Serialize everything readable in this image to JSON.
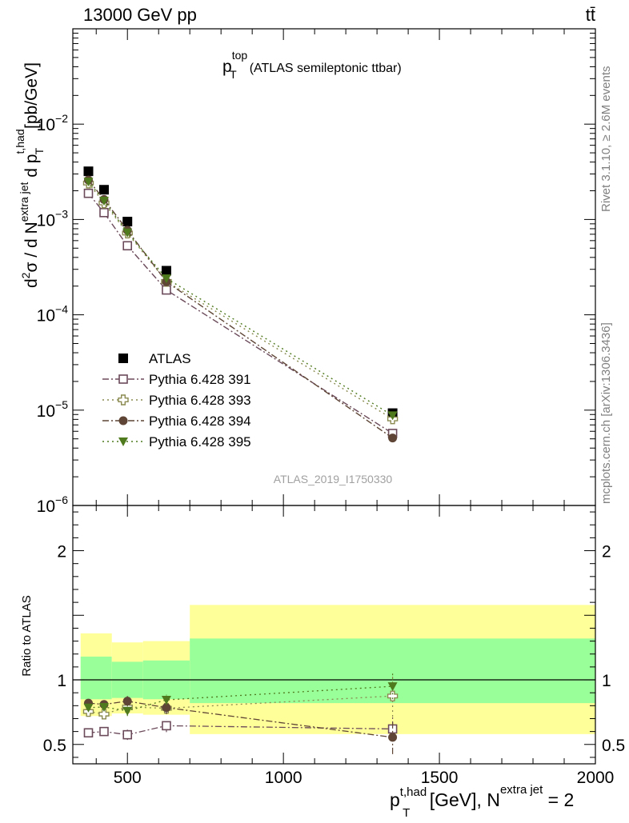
{
  "header": {
    "energy_label": "13000 GeV pp",
    "process_label": "tt̄"
  },
  "side_labels": {
    "rivet": "Rivet 3.1.10, ≥ 2.6M events",
    "mcplots": "mcplots.cern.ch [arXiv:1306.3436]"
  },
  "chart_data": [
    {
      "type": "scatter",
      "panel": "main",
      "title_main": "p",
      "title_sup": "top",
      "title_sub": "T",
      "title_rest": "(ATLAS semileptonic ttbar)",
      "ylabel": "d²σ / d N^{extra jet} d p_T^{t,had} [pb/GeV]",
      "ylabel_parts": {
        "d": "d",
        "two": "2",
        "sigma": "σ / d N",
        "extra": "extra jet",
        "dp": " d p",
        "thad": "t,had",
        "T": "T",
        "units": " [pb/GeV]"
      },
      "yscale": "log",
      "ylim": [
        1e-06,
        0.1
      ],
      "ytick_labels": [
        {
          "value": 0.01,
          "base": "10",
          "exp": "−2"
        },
        {
          "value": 0.001,
          "base": "10",
          "exp": "−3"
        },
        {
          "value": 0.0001,
          "base": "10",
          "exp": "−4"
        },
        {
          "value": 1e-05,
          "base": "10",
          "exp": "−5"
        },
        {
          "value": 1e-06,
          "base": "10",
          "exp": "−6"
        }
      ],
      "xlim": [
        325,
        2000
      ],
      "analysis_label": "ATLAS_2019_I1750330",
      "series": [
        {
          "name": "ATLAS",
          "marker": "square-filled",
          "color": "#000000",
          "line": "none",
          "x": [
            375,
            425,
            500,
            625,
            1350
          ],
          "y": [
            0.0032,
            0.00205,
            0.00095,
            0.00029,
            9.3e-06
          ]
        },
        {
          "name": "Pythia 6.428 391",
          "marker": "square-open",
          "color": "#6b4a5a",
          "line": "dashdot",
          "x": [
            375,
            425,
            500,
            625,
            1350
          ],
          "y": [
            0.00188,
            0.00118,
            0.00053,
            0.000182,
            5.7e-06
          ]
        },
        {
          "name": "Pythia 6.428 393",
          "marker": "cross-open",
          "color": "#8a8a50",
          "line": "dotted",
          "x": [
            375,
            425,
            500,
            625,
            1350
          ],
          "y": [
            0.00241,
            0.00149,
            0.00072,
            0.000224,
            8.1e-06
          ]
        },
        {
          "name": "Pythia 6.428 394",
          "marker": "circle-filled",
          "color": "#5e4535",
          "line": "dashdot",
          "x": [
            375,
            425,
            500,
            625,
            1350
          ],
          "y": [
            0.00259,
            0.00162,
            0.00077,
            0.000222,
            5.1e-06
          ]
        },
        {
          "name": "Pythia 6.428 395",
          "marker": "triangle-down",
          "color": "#4f7a1e",
          "line": "dotted",
          "x": [
            375,
            425,
            500,
            625,
            1350
          ],
          "y": [
            0.00249,
            0.00157,
            0.00073,
            0.000241,
            8.8e-06
          ]
        }
      ]
    },
    {
      "type": "scatter",
      "panel": "ratio",
      "ylabel": "Ratio to ATLAS",
      "ylim": [
        0.35,
        2.35
      ],
      "ytick_labels": [
        {
          "value": 0.5,
          "label": "0.5"
        },
        {
          "value": 1,
          "label": "1"
        },
        {
          "value": 2,
          "label": "2"
        }
      ],
      "xlim": [
        325,
        2000
      ],
      "xtick_labels": [
        {
          "value": 500,
          "label": "500"
        },
        {
          "value": 1000,
          "label": "1000"
        },
        {
          "value": 1500,
          "label": "1500"
        },
        {
          "value": 2000,
          "label": "2000"
        }
      ],
      "xlabel_parts": {
        "p": "p",
        "thad": "t,had",
        "T": "T",
        "mid": " [GeV], N",
        "extra": "extra jet",
        "end": " = 2"
      },
      "bands": [
        {
          "x0": 350,
          "x1": 450,
          "yellow": [
            0.72,
            1.36
          ],
          "green": [
            0.85,
            1.18
          ]
        },
        {
          "x0": 450,
          "x1": 550,
          "yellow": [
            0.74,
            1.29
          ],
          "green": [
            0.86,
            1.14
          ]
        },
        {
          "x0": 550,
          "x1": 700,
          "yellow": [
            0.73,
            1.3
          ],
          "green": [
            0.85,
            1.15
          ]
        },
        {
          "x0": 700,
          "x1": 2000,
          "yellow": [
            0.58,
            1.58
          ],
          "green": [
            0.82,
            1.32
          ]
        }
      ],
      "series": [
        {
          "name": "Pythia 6.428 391",
          "marker": "square-open",
          "color": "#6b4a5a",
          "line": "dashdot",
          "x": [
            375,
            425,
            500,
            625,
            1350
          ],
          "y": [
            0.59,
            0.6,
            0.575,
            0.645,
            0.62
          ],
          "err": [
            0.03,
            0.03,
            0.04,
            0.05,
            0.09
          ]
        },
        {
          "name": "Pythia 6.428 393",
          "marker": "cross-open",
          "color": "#8a8a50",
          "line": "dotted",
          "x": [
            375,
            425,
            500,
            625,
            1350
          ],
          "y": [
            0.755,
            0.735,
            0.79,
            0.78,
            0.875
          ],
          "err": [
            0.03,
            0.03,
            0.04,
            0.04,
            0.16
          ]
        },
        {
          "name": "Pythia 6.428 394",
          "marker": "circle-filled",
          "color": "#5e4535",
          "line": "dashdot",
          "x": [
            375,
            425,
            500,
            625,
            1350
          ],
          "y": [
            0.82,
            0.81,
            0.835,
            0.785,
            0.555
          ],
          "err": [
            0.03,
            0.03,
            0.04,
            0.05,
            0.13
          ]
        },
        {
          "name": "Pythia 6.428 395",
          "marker": "triangle-down",
          "color": "#4f7a1e",
          "line": "dotted",
          "x": [
            375,
            425,
            500,
            625,
            1350
          ],
          "y": [
            0.785,
            0.79,
            0.76,
            0.845,
            0.95
          ],
          "err": [
            0.03,
            0.03,
            0.04,
            0.04,
            0.1
          ]
        }
      ]
    }
  ]
}
